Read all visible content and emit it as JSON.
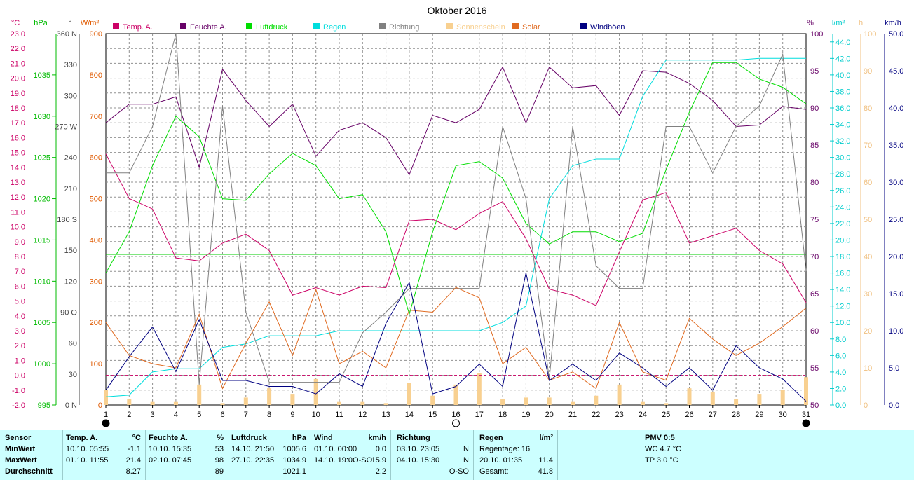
{
  "chart_data": {
    "type": "line",
    "title": "Oktober 2016",
    "x": [
      1,
      2,
      3,
      4,
      5,
      6,
      7,
      8,
      9,
      10,
      11,
      12,
      13,
      14,
      15,
      16,
      17,
      18,
      19,
      20,
      21,
      22,
      23,
      24,
      25,
      26,
      27,
      28,
      29,
      30,
      31
    ],
    "x_ticks": [
      "1",
      "2",
      "3",
      "4",
      "5",
      "6",
      "7",
      "8",
      "9",
      "10",
      "11",
      "12",
      "13",
      "14",
      "15",
      "16",
      "17",
      "18",
      "19",
      "20",
      "21",
      "22",
      "23",
      "24",
      "25",
      "26",
      "27",
      "28",
      "29",
      "30",
      "31"
    ],
    "axes": {
      "temp": {
        "unit": "°C",
        "range": [
          -2.0,
          23.0
        ],
        "ticks": [
          "23.0",
          "22.0",
          "21.0",
          "20.0",
          "19.0",
          "18.0",
          "17.0",
          "16.0",
          "15.0",
          "14.0",
          "13.0",
          "12.0",
          "11.0",
          "10.0",
          "9.0",
          "8.0",
          "7.0",
          "6.0",
          "5.0",
          "4.0",
          "3.0",
          "2.0",
          "1.0",
          "0.0",
          "-1.0",
          "-2.0"
        ],
        "color": "#cc0066"
      },
      "pressure": {
        "unit": "hPa",
        "range": [
          995,
          1040
        ],
        "ticks": [
          "1035",
          "1030",
          "1025",
          "1020",
          "1015",
          "1010",
          "1005",
          "1000",
          "995"
        ],
        "color": "#00bb00"
      },
      "direction": {
        "unit": "°",
        "range": [
          0,
          360
        ],
        "ticks": [
          "360 N",
          "330",
          "300",
          "270 W",
          "240",
          "210",
          "180 S",
          "150",
          "120",
          "90 O",
          "60",
          "30",
          "0 N"
        ],
        "color": "#444444"
      },
      "solar": {
        "unit": "W/m²",
        "range": [
          0,
          900
        ],
        "ticks": [
          "900",
          "800",
          "700",
          "600",
          "500",
          "400",
          "300",
          "200",
          "100",
          "0"
        ],
        "color": "#e05a00"
      },
      "humidity": {
        "unit": "%",
        "range": [
          50,
          100
        ],
        "ticks": [
          "100",
          "95",
          "90",
          "85",
          "80",
          "75",
          "70",
          "65",
          "60",
          "55",
          "50"
        ],
        "color": "#660066"
      },
      "rain": {
        "unit": "l/m²",
        "range": [
          0,
          45
        ],
        "ticks": [
          "44.0",
          "42.0",
          "40.0",
          "38.0",
          "36.0",
          "34.0",
          "32.0",
          "30.0",
          "28.0",
          "26.0",
          "24.0",
          "22.0",
          "20.0",
          "18.0",
          "16.0",
          "14.0",
          "12.0",
          "10.0",
          "8.0",
          "6.0",
          "4.0",
          "2.0",
          "0.0"
        ],
        "color": "#00cccc"
      },
      "sunshine": {
        "unit": "h",
        "range": [
          0,
          100
        ],
        "ticks": [
          "100",
          "90",
          "80",
          "70",
          "60",
          "50",
          "40",
          "30",
          "20",
          "10",
          "0"
        ],
        "color": "#f0c080"
      },
      "wind": {
        "unit": "km/h",
        "range": [
          0,
          50
        ],
        "ticks": [
          "50.0",
          "45.0",
          "40.0",
          "35.0",
          "30.0",
          "25.0",
          "20.0",
          "15.0",
          "10.0",
          "5.0",
          "0.0"
        ],
        "color": "#000080"
      }
    },
    "legend": [
      "Temp. A.",
      "Feuchte A.",
      "Luftdruck",
      "Regen",
      "Richtung",
      "Sonnenschein",
      "Solar",
      "Windböen"
    ],
    "series": [
      {
        "name": "Temp. A.",
        "axis": "temp",
        "color": "#cc0066",
        "values": [
          14.9,
          11.9,
          11.2,
          7.9,
          7.7,
          8.9,
          9.5,
          8.4,
          5.4,
          5.9,
          5.4,
          6.0,
          5.9,
          10.4,
          10.5,
          9.8,
          10.9,
          11.7,
          9.2,
          5.8,
          5.4,
          4.7,
          8.3,
          11.8,
          12.3,
          8.9,
          9.4,
          9.9,
          8.4,
          7.5,
          4.9
        ]
      },
      {
        "name": "Feuchte A.",
        "axis": "humidity",
        "color": "#660066",
        "values": [
          88.0,
          90.5,
          90.5,
          91.5,
          82.0,
          95.2,
          91.0,
          87.5,
          90.5,
          83.5,
          87.0,
          88.0,
          86.0,
          81.0,
          89.0,
          88.0,
          89.8,
          95.5,
          88.0,
          95.5,
          92.7,
          93.0,
          89.0,
          95.0,
          94.8,
          93.3,
          91.0,
          87.5,
          87.7,
          90.2,
          89.8
        ]
      },
      {
        "name": "Luftdruck",
        "axis": "pressure",
        "color": "#00dd00",
        "values": [
          1011.0,
          1016.0,
          1024.0,
          1030.0,
          1027.5,
          1020.0,
          1019.8,
          1023.0,
          1025.5,
          1024.0,
          1020.0,
          1020.5,
          1016.0,
          1006.0,
          1016.0,
          1024.0,
          1024.5,
          1022.5,
          1017.0,
          1014.5,
          1016.0,
          1016.0,
          1014.8,
          1015.8,
          1023.5,
          1030.5,
          1036.5,
          1036.5,
          1034.5,
          1033.5,
          1031.5
        ]
      },
      {
        "name": "Regen",
        "axis": "rain",
        "color": "#00dddd",
        "values": [
          1.0,
          1.2,
          4.0,
          4.4,
          4.4,
          7.0,
          7.4,
          8.4,
          8.4,
          8.4,
          9.0,
          9.0,
          9.0,
          9.0,
          9.0,
          9.0,
          9.0,
          10.0,
          12.0,
          25.0,
          29.0,
          29.8,
          29.8,
          37.4,
          41.8,
          41.8,
          41.8,
          41.8,
          42.0,
          42.0,
          42.0
        ]
      },
      {
        "name": "Richtung",
        "axis": "direction",
        "color": "#808080",
        "values": [
          225,
          225,
          270,
          360,
          20,
          290,
          90,
          22,
          22,
          22,
          22,
          70,
          90,
          113,
          113,
          113,
          113,
          270,
          200,
          25,
          270,
          135,
          113,
          113,
          270,
          270,
          225,
          270,
          290,
          340,
          130
        ]
      },
      {
        "name": "Sonnenschein",
        "axis": "sunshine",
        "color": "#f8d090",
        "values": [
          4.0,
          1.5,
          1.0,
          1.0,
          5.5,
          0.5,
          2.0,
          4.5,
          3.0,
          7.0,
          1.0,
          1.0,
          0.5,
          6.0,
          2.5,
          5.5,
          8.5,
          1.5,
          2.0,
          2.0,
          1.0,
          2.5,
          5.5,
          1.0,
          0.5,
          4.5,
          3.5,
          1.5,
          3.0,
          4.0,
          7.5
        ]
      },
      {
        "name": "Solar",
        "axis": "solar",
        "color": "#e06a20",
        "values": [
          200,
          120,
          100,
          90,
          220,
          40,
          150,
          250,
          120,
          280,
          100,
          130,
          90,
          230,
          225,
          285,
          260,
          100,
          140,
          60,
          80,
          40,
          200,
          80,
          60,
          210,
          160,
          120,
          150,
          190,
          235
        ]
      },
      {
        "name": "Windböen",
        "axis": "wind",
        "color": "#000080",
        "values": [
          2.0,
          6.5,
          10.5,
          4.5,
          11.5,
          3.3,
          3.3,
          2.5,
          2.5,
          1.5,
          4.2,
          2.5,
          11.0,
          16.5,
          1.5,
          2.5,
          5.5,
          2.5,
          17.8,
          3.3,
          5.5,
          3.3,
          7.0,
          5.0,
          2.5,
          5.0,
          2.0,
          8.0,
          5.0,
          3.5,
          0.5
        ]
      }
    ],
    "reference_lines": [
      {
        "axis": "temp",
        "value": 0.0,
        "color": "#cc0066",
        "style": "dashed"
      },
      {
        "axis": "pressure",
        "value": 1013.25,
        "color": "#00cc00",
        "style": "solid"
      }
    ],
    "moon_phases": [
      {
        "day": 1,
        "phase": "new"
      },
      {
        "day": 16,
        "phase": "full"
      },
      {
        "day": 31,
        "phase": "new"
      }
    ],
    "grid": true
  },
  "stats": {
    "sensor": {
      "title": "Sensor",
      "rows": [
        "MinWert",
        "MaxWert",
        "Durchschnitt"
      ]
    },
    "temp": {
      "title": "Temp. A.",
      "unit": "°C",
      "min_time": "10.10.  05:55",
      "min": "-1.1",
      "max_time": "01.10.  11:55",
      "max": "21.4",
      "avg": "8.27"
    },
    "humidity": {
      "title": "Feuchte A.",
      "unit": "%",
      "min_time": "10.10.  15:35",
      "min": "53",
      "max_time": "02.10.  07:45",
      "max": "98",
      "avg": "89"
    },
    "pressure": {
      "title": "Luftdruck",
      "unit": "hPa",
      "min_time": "14.10.  21:50",
      "min": "1005.6",
      "max_time": "27.10.  22:35",
      "max": "1034.9",
      "avg": "1021.1"
    },
    "wind": {
      "title": "Wind",
      "unit": "km/h",
      "min_time": "01.10.  00:00",
      "min": "0.0",
      "max_time": "14.10.  19:0O-SO",
      "max": "15.9",
      "avg": "2.2"
    },
    "direction": {
      "title": "Richtung",
      "min_time": "03.10.  23:05",
      "min": "N",
      "max_time": "04.10.  15:30",
      "max": "N",
      "avg": "O-SO"
    },
    "rain": {
      "title": "Regen",
      "unit": "l/m²",
      "days_label": "Regentage: 16",
      "max_time": "20.10.  01:35",
      "max": "11.4",
      "total_label": "Gesamt:",
      "total": "41.8"
    },
    "pmv": {
      "title": "PMV 0:5",
      "wc": "WC 4.7 °C",
      "tp": "TP 3.0 °C"
    }
  }
}
